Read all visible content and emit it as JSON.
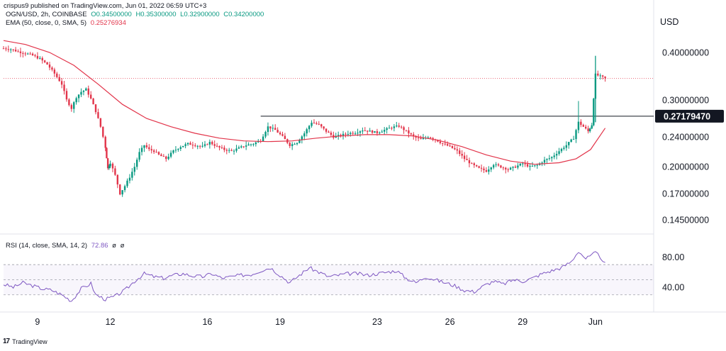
{
  "header": {
    "published": "crispus9 published on TradingView.com, Jun 01, 2022 06:59 UTC+3",
    "symbol": "OGN/USD, 2h, COINBASE",
    "open": "O0.34500000",
    "high": "H0.35300000",
    "low": "L0.32900000",
    "close": "C0.34200000",
    "ema_label": "EMA (50, close, 0, SMA, 5)",
    "ema_value": "0.25276934",
    "rsi_label": "RSI (14, close, SMA, 14, 2)",
    "rsi_value": "72.86",
    "rsi_extra1": "ø",
    "rsi_extra2": "ø"
  },
  "footer": {
    "brand": "TradingView"
  },
  "colors": {
    "up": "#089981",
    "down": "#e2344a",
    "ema": "#e2344a",
    "rsi": "#7e57c2",
    "line": "#131722"
  },
  "chart_data": {
    "type": "candlestick",
    "currency": "USD",
    "price_ticks": [
      "0.40000000",
      "0.30000000",
      "0.24000000",
      "0.20000000",
      "0.17000000",
      "0.14500000"
    ],
    "price_tick_values": [
      0.4,
      0.3,
      0.24,
      0.2,
      0.17,
      0.145
    ],
    "price_scale": "log",
    "current_price_label": "0.27179470",
    "current_price": 0.2718,
    "last_close": 0.342,
    "date_labels": [
      "9",
      "12",
      "16",
      "19",
      "23",
      "26",
      "29",
      "Jun"
    ],
    "date_positions_days": [
      9,
      12,
      16,
      19,
      23,
      26,
      29,
      32
    ],
    "x_range_days": [
      7.6,
      34.4
    ],
    "horizontal_line": {
      "price": 0.2718,
      "from_day": 18.2,
      "to_day": 34.4
    },
    "close_series": [
      [
        7.6,
        0.41
      ],
      [
        7.9,
        0.408
      ],
      [
        8.2,
        0.402
      ],
      [
        8.5,
        0.398
      ],
      [
        8.8,
        0.393
      ],
      [
        9.1,
        0.385
      ],
      [
        9.4,
        0.372
      ],
      [
        9.7,
        0.352
      ],
      [
        10.0,
        0.33
      ],
      [
        10.2,
        0.3
      ],
      [
        10.4,
        0.285
      ],
      [
        10.6,
        0.305
      ],
      [
        10.8,
        0.315
      ],
      [
        11.0,
        0.32
      ],
      [
        11.2,
        0.302
      ],
      [
        11.4,
        0.28
      ],
      [
        11.6,
        0.255
      ],
      [
        11.8,
        0.225
      ],
      [
        11.9,
        0.198
      ],
      [
        12.0,
        0.205
      ],
      [
        12.2,
        0.19
      ],
      [
        12.4,
        0.17
      ],
      [
        12.6,
        0.178
      ],
      [
        12.8,
        0.188
      ],
      [
        13.0,
        0.2
      ],
      [
        13.2,
        0.218
      ],
      [
        13.4,
        0.228
      ],
      [
        13.6,
        0.222
      ],
      [
        13.8,
        0.22
      ],
      [
        14.0,
        0.215
      ],
      [
        14.3,
        0.21
      ],
      [
        14.6,
        0.22
      ],
      [
        14.9,
        0.226
      ],
      [
        15.2,
        0.23
      ],
      [
        15.5,
        0.228
      ],
      [
        15.8,
        0.226
      ],
      [
        16.1,
        0.232
      ],
      [
        16.4,
        0.226
      ],
      [
        16.7,
        0.222
      ],
      [
        17.0,
        0.22
      ],
      [
        17.3,
        0.224
      ],
      [
        17.6,
        0.228
      ],
      [
        17.9,
        0.23
      ],
      [
        18.2,
        0.235
      ],
      [
        18.5,
        0.255
      ],
      [
        18.8,
        0.25
      ],
      [
        19.1,
        0.24
      ],
      [
        19.4,
        0.228
      ],
      [
        19.7,
        0.232
      ],
      [
        20.0,
        0.245
      ],
      [
        20.3,
        0.262
      ],
      [
        20.6,
        0.258
      ],
      [
        20.9,
        0.248
      ],
      [
        21.2,
        0.24
      ],
      [
        21.5,
        0.242
      ],
      [
        21.8,
        0.245
      ],
      [
        22.1,
        0.246
      ],
      [
        22.4,
        0.25
      ],
      [
        22.7,
        0.248
      ],
      [
        23.0,
        0.246
      ],
      [
        23.3,
        0.25
      ],
      [
        23.6,
        0.254
      ],
      [
        23.9,
        0.256
      ],
      [
        24.2,
        0.248
      ],
      [
        24.5,
        0.24
      ],
      [
        24.8,
        0.236
      ],
      [
        25.1,
        0.24
      ],
      [
        25.4,
        0.236
      ],
      [
        25.7,
        0.23
      ],
      [
        26.0,
        0.226
      ],
      [
        26.3,
        0.22
      ],
      [
        26.6,
        0.21
      ],
      [
        26.9,
        0.203
      ],
      [
        27.2,
        0.198
      ],
      [
        27.5,
        0.195
      ],
      [
        27.8,
        0.203
      ],
      [
        28.1,
        0.2
      ],
      [
        28.4,
        0.197
      ],
      [
        28.7,
        0.2
      ],
      [
        29.0,
        0.204
      ],
      [
        29.3,
        0.2
      ],
      [
        29.6,
        0.202
      ],
      [
        29.9,
        0.208
      ],
      [
        30.2,
        0.212
      ],
      [
        30.5,
        0.22
      ],
      [
        30.8,
        0.228
      ],
      [
        31.1,
        0.238
      ],
      [
        31.3,
        0.262
      ],
      [
        31.5,
        0.255
      ],
      [
        31.7,
        0.248
      ],
      [
        31.85,
        0.258
      ],
      [
        32.0,
        0.35
      ],
      [
        32.2,
        0.346
      ],
      [
        32.4,
        0.342
      ]
    ],
    "ema_series": [
      [
        7.6,
        0.43
      ],
      [
        8.5,
        0.42
      ],
      [
        9.5,
        0.4
      ],
      [
        10.5,
        0.37
      ],
      [
        11.5,
        0.33
      ],
      [
        12.5,
        0.292
      ],
      [
        13.5,
        0.268
      ],
      [
        14.5,
        0.255
      ],
      [
        15.5,
        0.245
      ],
      [
        16.5,
        0.238
      ],
      [
        17.5,
        0.234
      ],
      [
        18.5,
        0.233
      ],
      [
        19.5,
        0.234
      ],
      [
        20.5,
        0.238
      ],
      [
        21.5,
        0.241
      ],
      [
        22.5,
        0.243
      ],
      [
        23.5,
        0.243
      ],
      [
        24.5,
        0.241
      ],
      [
        25.5,
        0.235
      ],
      [
        26.5,
        0.226
      ],
      [
        27.5,
        0.215
      ],
      [
        28.5,
        0.207
      ],
      [
        29.5,
        0.203
      ],
      [
        30.5,
        0.205
      ],
      [
        31.2,
        0.21
      ],
      [
        31.8,
        0.222
      ],
      [
        32.4,
        0.2528
      ]
    ],
    "rsi": {
      "ticks": [
        "80.00",
        "40.00"
      ],
      "tick_values": [
        80,
        40
      ],
      "range": [
        10,
        105
      ],
      "band_levels": [
        70,
        50,
        30
      ],
      "current": 72.86,
      "series": [
        [
          7.6,
          44
        ],
        [
          8.0,
          40
        ],
        [
          8.4,
          46
        ],
        [
          8.8,
          42
        ],
        [
          9.2,
          38
        ],
        [
          9.6,
          36
        ],
        [
          10.0,
          30
        ],
        [
          10.4,
          22
        ],
        [
          10.8,
          38
        ],
        [
          11.2,
          45
        ],
        [
          11.4,
          30
        ],
        [
          11.8,
          24
        ],
        [
          12.2,
          28
        ],
        [
          12.6,
          36
        ],
        [
          13.0,
          48
        ],
        [
          13.4,
          58
        ],
        [
          13.8,
          54
        ],
        [
          14.2,
          52
        ],
        [
          14.6,
          56
        ],
        [
          15.0,
          58
        ],
        [
          15.4,
          55
        ],
        [
          15.8,
          54
        ],
        [
          16.2,
          58
        ],
        [
          16.6,
          52
        ],
        [
          17.0,
          54
        ],
        [
          17.4,
          56
        ],
        [
          17.8,
          57
        ],
        [
          18.2,
          62
        ],
        [
          18.6,
          66
        ],
        [
          19.0,
          56
        ],
        [
          19.4,
          46
        ],
        [
          19.8,
          56
        ],
        [
          20.2,
          66
        ],
        [
          20.6,
          60
        ],
        [
          21.0,
          54
        ],
        [
          21.4,
          56
        ],
        [
          21.8,
          58
        ],
        [
          22.2,
          58
        ],
        [
          22.6,
          56
        ],
        [
          23.0,
          58
        ],
        [
          23.4,
          60
        ],
        [
          23.8,
          62
        ],
        [
          24.2,
          52
        ],
        [
          24.6,
          46
        ],
        [
          25.0,
          54
        ],
        [
          25.4,
          50
        ],
        [
          25.8,
          46
        ],
        [
          26.2,
          42
        ],
        [
          26.6,
          36
        ],
        [
          27.0,
          34
        ],
        [
          27.4,
          42
        ],
        [
          27.8,
          48
        ],
        [
          28.2,
          44
        ],
        [
          28.6,
          50
        ],
        [
          29.0,
          48
        ],
        [
          29.4,
          52
        ],
        [
          29.8,
          58
        ],
        [
          30.2,
          62
        ],
        [
          30.6,
          66
        ],
        [
          31.0,
          74
        ],
        [
          31.3,
          88
        ],
        [
          31.6,
          78
        ],
        [
          31.85,
          82
        ],
        [
          32.0,
          86
        ],
        [
          32.2,
          80
        ],
        [
          32.4,
          72.86
        ]
      ]
    }
  }
}
